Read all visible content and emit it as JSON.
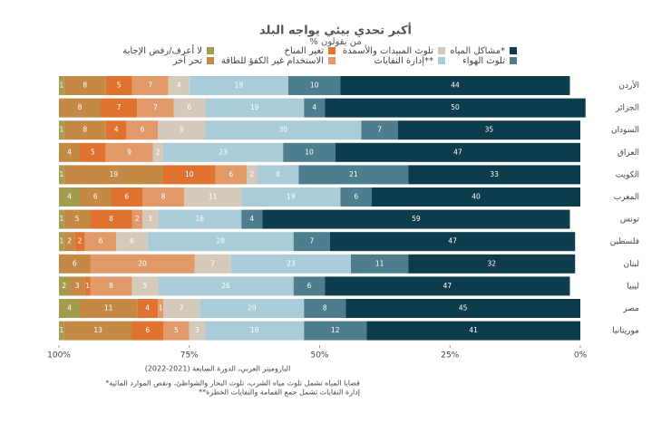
{
  "chart_data": {
    "type": "stacked_barh",
    "title": "أكبر تحدي بيئي يواجه البلد",
    "subtitle": "% من يقولون",
    "categories": [
      "الأردن",
      "الجزائر",
      "السودان",
      "العراق",
      "الكويت",
      "المغرب",
      "تونس",
      "فلسطين",
      "لبنان",
      "ليبيا",
      "مصر",
      "موريتانيا"
    ],
    "series": [
      {
        "name": "لا أعرف/رفض الإجابة",
        "color": "#a29c4c",
        "values": [
          1,
          0,
          1,
          0,
          1,
          4,
          1,
          1,
          0,
          2,
          4,
          1
        ]
      },
      {
        "name": "تحر آخر",
        "color": "#c48a45",
        "values": [
          8,
          8,
          8,
          4,
          19,
          6,
          5,
          2,
          6,
          3,
          11,
          13
        ]
      },
      {
        "name": "تغير المناخ",
        "color": "#e0732f",
        "values": [
          5,
          7,
          4,
          5,
          10,
          6,
          8,
          2,
          0,
          1,
          4,
          6
        ]
      },
      {
        "name": "الاستخدام غير الكفؤ للطاقة",
        "color": "#e29a6a",
        "values": [
          7,
          7,
          6,
          9,
          6,
          8,
          2,
          6,
          20,
          8,
          1,
          5
        ]
      },
      {
        "name": "تلوث المبيدات والأسمدة",
        "color": "#d5cab9",
        "values": [
          4,
          6,
          9,
          2,
          2,
          11,
          3,
          6,
          7,
          5,
          7,
          3
        ]
      },
      {
        "name": "إدارة النفايات**",
        "color": "#a9ccd8",
        "values": [
          19,
          19,
          30,
          23,
          8,
          19,
          16,
          28,
          23,
          26,
          20,
          19
        ]
      },
      {
        "name": "تلوث الهواء",
        "color": "#4e7e8d",
        "values": [
          10,
          4,
          7,
          10,
          21,
          6,
          4,
          7,
          11,
          6,
          8,
          12
        ]
      },
      {
        "name": "مشاكل المياه*",
        "color": "#0d3c4d",
        "values": [
          44,
          50,
          35,
          47,
          33,
          40,
          59,
          47,
          32,
          47,
          45,
          41
        ]
      }
    ],
    "xlim": [
      100,
      0
    ],
    "xticks": [
      {
        "value": 100,
        "label": "100%"
      },
      {
        "value": 75,
        "label": "75%"
      },
      {
        "value": 50,
        "label": "50%"
      },
      {
        "value": 25,
        "label": "25%"
      },
      {
        "value": 0,
        "label": "0%"
      }
    ],
    "source": "الباروميتر العربي، الدورة السابعة (2021-2022)",
    "notes": [
      "*قضايا المياه تشمل تلوث مياه الشرب، تلوث البحار والشواطئ، ونقص الموارد المائية",
      "**إدارة النفايات تشمل جمع القمامة والنفايات الخطرة"
    ]
  }
}
